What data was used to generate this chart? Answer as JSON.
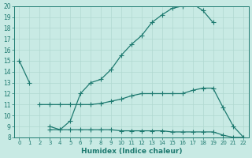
{
  "xlabel": "Humidex (Indice chaleur)",
  "xlim": [
    -0.5,
    22.5
  ],
  "ylim": [
    8,
    20
  ],
  "yticks": [
    8,
    9,
    10,
    11,
    12,
    13,
    14,
    15,
    16,
    17,
    18,
    19,
    20
  ],
  "xticks": [
    0,
    1,
    2,
    3,
    4,
    5,
    6,
    7,
    8,
    9,
    10,
    11,
    12,
    13,
    14,
    15,
    16,
    17,
    18,
    19,
    20,
    21,
    22
  ],
  "bg_color": "#c8eae4",
  "line_color": "#1e7a70",
  "grid_color": "#b0d8d0",
  "line1_x": [
    0,
    1
  ],
  "line1_y": [
    15,
    13
  ],
  "line2_x": [
    3,
    4,
    5,
    6,
    7,
    8,
    9,
    10,
    11,
    12,
    13,
    14,
    15,
    16,
    17,
    18,
    19
  ],
  "line2_y": [
    9,
    8.7,
    9.5,
    12,
    13,
    13.3,
    14.2,
    15.5,
    16.5,
    17.3,
    18.5,
    19.2,
    19.8,
    20.0,
    20.2,
    19.6,
    18.5
  ],
  "line3_x": [
    2,
    3,
    4,
    5,
    6,
    7,
    8,
    9,
    10,
    11,
    12,
    13,
    14,
    15,
    16,
    17,
    18,
    19,
    20,
    21,
    22
  ],
  "line3_y": [
    11,
    11,
    11,
    11,
    11,
    11,
    11.1,
    11.3,
    11.5,
    11.8,
    12,
    12,
    12,
    12,
    12,
    12.3,
    12.5,
    12.5,
    10.7,
    9.0,
    8.0
  ],
  "line4_x": [
    3,
    4,
    5,
    6,
    7,
    8,
    9,
    10,
    11,
    12,
    13,
    14,
    15,
    16,
    17,
    18,
    19,
    20,
    21,
    22
  ],
  "line4_y": [
    8.7,
    8.7,
    8.7,
    8.7,
    8.7,
    8.7,
    8.7,
    8.6,
    8.6,
    8.6,
    8.6,
    8.6,
    8.5,
    8.5,
    8.5,
    8.5,
    8.5,
    8.2,
    8.0,
    8.0
  ]
}
